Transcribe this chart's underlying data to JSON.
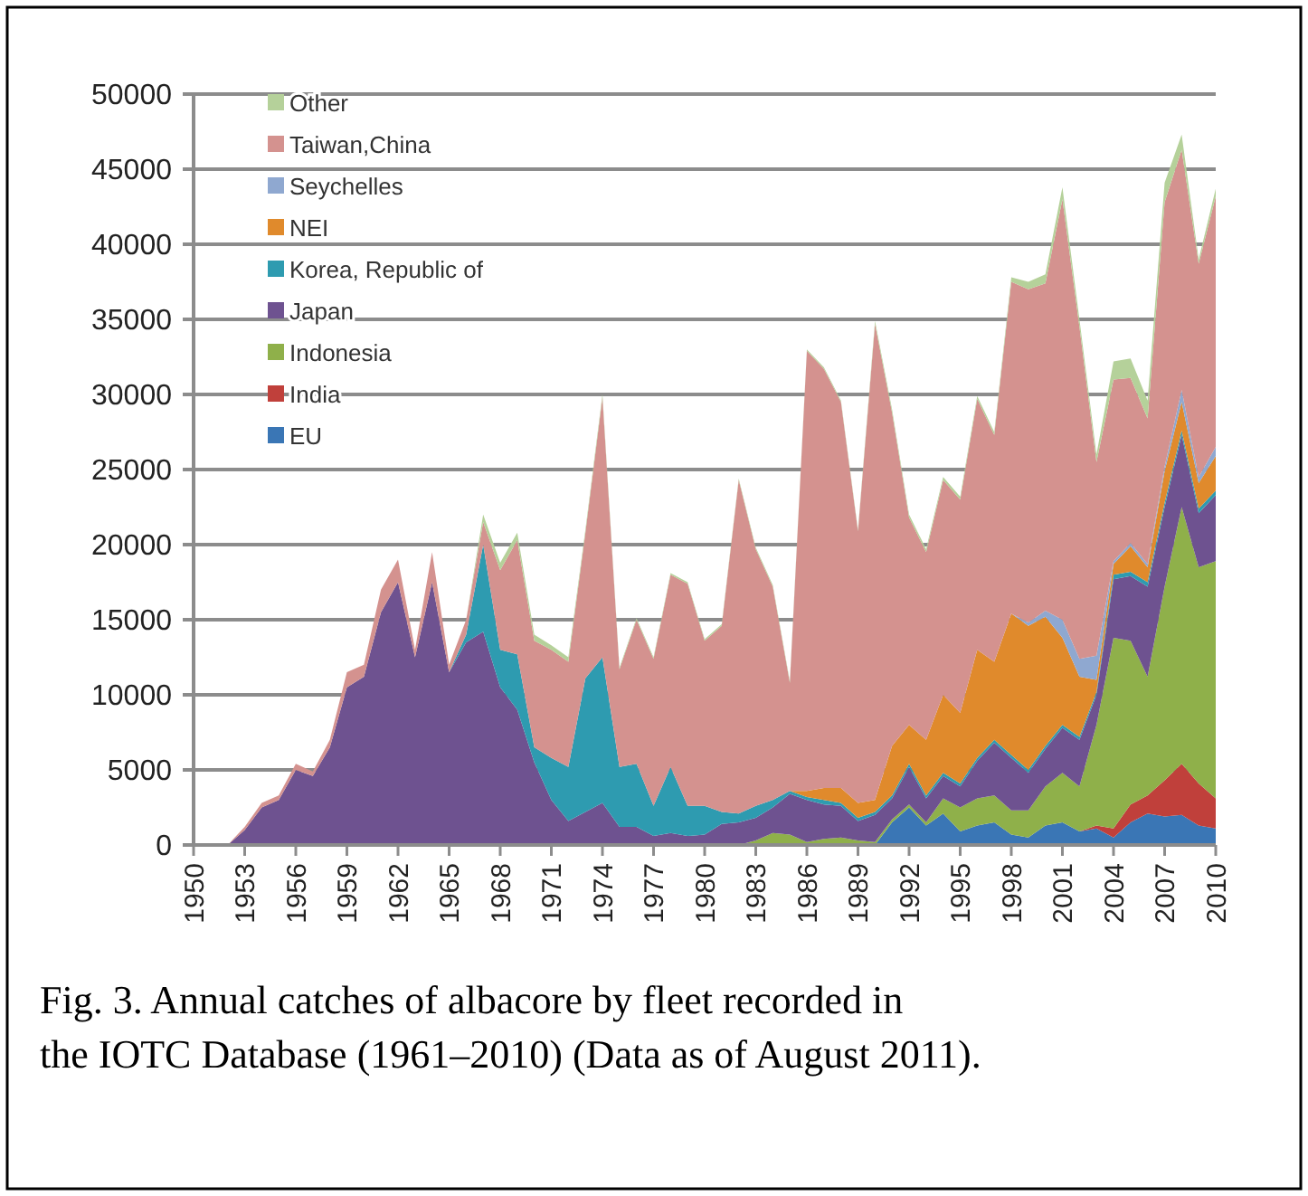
{
  "chart_data": {
    "type": "area",
    "stacked": true,
    "x": [
      1950,
      1951,
      1952,
      1953,
      1954,
      1955,
      1956,
      1957,
      1958,
      1959,
      1960,
      1961,
      1962,
      1963,
      1964,
      1965,
      1966,
      1967,
      1968,
      1969,
      1970,
      1971,
      1972,
      1973,
      1974,
      1975,
      1976,
      1977,
      1978,
      1979,
      1980,
      1981,
      1982,
      1983,
      1984,
      1985,
      1986,
      1987,
      1988,
      1989,
      1990,
      1991,
      1992,
      1993,
      1994,
      1995,
      1996,
      1997,
      1998,
      1999,
      2000,
      2001,
      2002,
      2003,
      2004,
      2005,
      2006,
      2007,
      2008,
      2009,
      2010
    ],
    "xlim": [
      1950,
      2010
    ],
    "xticks": [
      1950,
      1953,
      1956,
      1959,
      1962,
      1965,
      1968,
      1971,
      1974,
      1977,
      1980,
      1983,
      1986,
      1989,
      1992,
      1995,
      1998,
      2001,
      2004,
      2007,
      2010
    ],
    "ylim": [
      0,
      50000
    ],
    "yticks": [
      0,
      5000,
      10000,
      15000,
      20000,
      25000,
      30000,
      35000,
      40000,
      45000,
      50000
    ],
    "grid": "y",
    "legend": "top left",
    "annotations": [
      "Fig. 3. Annual catches of albacore by fleet recorded in the IOTC Database (1961–2010) (Data as of August 2011)."
    ],
    "series": [
      {
        "name": "EU",
        "color": "#3a76b5",
        "values": [
          0,
          0,
          0,
          0,
          0,
          0,
          0,
          0,
          0,
          0,
          0,
          0,
          0,
          0,
          0,
          0,
          0,
          0,
          0,
          0,
          0,
          0,
          0,
          0,
          0,
          0,
          0,
          0,
          0,
          0,
          0,
          0,
          0,
          0,
          0,
          0,
          0,
          0,
          0,
          0,
          0,
          1500,
          2500,
          1300,
          2100,
          900,
          1300,
          1500,
          700,
          500,
          1300,
          1500,
          900,
          1100,
          500,
          1500,
          2100,
          1900,
          2000,
          1300,
          1100
        ]
      },
      {
        "name": "India",
        "color": "#c0403b",
        "values": [
          0,
          0,
          0,
          0,
          0,
          0,
          0,
          0,
          0,
          0,
          0,
          0,
          0,
          0,
          0,
          0,
          0,
          0,
          0,
          0,
          0,
          0,
          0,
          0,
          0,
          0,
          0,
          0,
          0,
          0,
          0,
          0,
          0,
          0,
          0,
          0,
          0,
          0,
          0,
          0,
          0,
          0,
          0,
          0,
          0,
          0,
          0,
          0,
          0,
          0,
          0,
          0,
          0,
          200,
          600,
          1200,
          1200,
          2400,
          3400,
          2800,
          2000
        ]
      },
      {
        "name": "Indonesia",
        "color": "#8fb04a",
        "values": [
          0,
          0,
          0,
          0,
          0,
          0,
          0,
          0,
          0,
          0,
          0,
          0,
          0,
          0,
          0,
          0,
          0,
          0,
          0,
          0,
          0,
          0,
          0,
          0,
          0,
          0,
          0,
          0,
          0,
          0,
          0,
          0,
          0,
          300,
          800,
          700,
          200,
          400,
          500,
          300,
          200,
          200,
          200,
          200,
          1000,
          1600,
          1800,
          1800,
          1600,
          1800,
          2600,
          3300,
          3000,
          6700,
          12700,
          10900,
          7900,
          12900,
          17100,
          14400,
          15800
        ]
      },
      {
        "name": "Japan",
        "color": "#6e5290",
        "values": [
          0,
          0,
          0,
          1000,
          2500,
          3000,
          5000,
          4600,
          6500,
          10500,
          11200,
          15500,
          17500,
          12500,
          17500,
          11500,
          13500,
          14200,
          10500,
          9000,
          5500,
          3000,
          1600,
          2200,
          2800,
          1200,
          1200,
          600,
          800,
          600,
          700,
          1400,
          1500,
          1500,
          1700,
          2700,
          2800,
          2300,
          2100,
          1300,
          1800,
          1400,
          2500,
          1600,
          1500,
          1400,
          2500,
          3500,
          3500,
          2500,
          2500,
          3000,
          3100,
          2000,
          3900,
          4300,
          6000,
          5300,
          4800,
          3600,
          4400
        ]
      },
      {
        "name": "Korea, Republic of",
        "color": "#2e9bb0",
        "values": [
          0,
          0,
          0,
          0,
          0,
          0,
          0,
          0,
          0,
          0,
          0,
          0,
          0,
          0,
          0,
          0,
          500,
          5800,
          2500,
          3700,
          1000,
          2800,
          3600,
          8900,
          9700,
          4000,
          4200,
          2000,
          4400,
          2000,
          1900,
          800,
          600,
          800,
          500,
          200,
          200,
          300,
          200,
          200,
          200,
          200,
          200,
          200,
          200,
          200,
          200,
          200,
          200,
          200,
          200,
          200,
          200,
          200,
          300,
          300,
          300,
          300,
          300,
          300,
          300
        ]
      },
      {
        "name": "NEI",
        "color": "#e08a2c",
        "values": [
          0,
          0,
          0,
          0,
          0,
          0,
          0,
          0,
          0,
          0,
          0,
          0,
          0,
          0,
          0,
          0,
          0,
          0,
          0,
          0,
          0,
          0,
          0,
          0,
          0,
          0,
          0,
          0,
          0,
          0,
          0,
          0,
          0,
          0,
          0,
          0,
          400,
          800,
          1000,
          1000,
          800,
          3300,
          2600,
          3700,
          5200,
          4700,
          7200,
          5200,
          9400,
          9600,
          8600,
          5800,
          4000,
          800,
          700,
          1700,
          1000,
          2100,
          1900,
          1700,
          2300
        ]
      },
      {
        "name": "Seychelles",
        "color": "#8fa8d0",
        "values": [
          0,
          0,
          0,
          0,
          0,
          0,
          0,
          0,
          0,
          0,
          0,
          0,
          0,
          0,
          0,
          0,
          0,
          0,
          0,
          0,
          0,
          0,
          0,
          0,
          0,
          0,
          0,
          0,
          0,
          0,
          0,
          0,
          0,
          0,
          0,
          0,
          0,
          0,
          0,
          0,
          0,
          0,
          0,
          0,
          0,
          0,
          0,
          0,
          0,
          200,
          400,
          1200,
          1200,
          1600,
          200,
          200,
          200,
          300,
          800,
          400,
          600
        ]
      },
      {
        "name": "Taiwan,China",
        "color": "#d4928f",
        "values": [
          0,
          0,
          0,
          200,
          300,
          300,
          400,
          300,
          500,
          1000,
          800,
          1500,
          1500,
          500,
          2000,
          500,
          1000,
          1500,
          5300,
          7600,
          7100,
          7200,
          7000,
          9700,
          17300,
          6500,
          9600,
          9800,
          12800,
          14800,
          11000,
          12400,
          22200,
          17100,
          14200,
          7200,
          29300,
          27900,
          25700,
          18100,
          31700,
          22200,
          13800,
          12500,
          14300,
          14200,
          16700,
          15100,
          22100,
          22200,
          21800,
          28000,
          22100,
          12900,
          12100,
          11000,
          9700,
          17600,
          16000,
          14200,
          16700
        ]
      },
      {
        "name": "Other",
        "color": "#b5d19a",
        "values": [
          0,
          0,
          0,
          0,
          0,
          0,
          0,
          0,
          0,
          0,
          0,
          0,
          0,
          0,
          0,
          0,
          0,
          500,
          500,
          500,
          400,
          300,
          300,
          200,
          200,
          100,
          100,
          100,
          100,
          100,
          100,
          100,
          100,
          100,
          100,
          100,
          100,
          100,
          100,
          100,
          200,
          200,
          200,
          200,
          200,
          200,
          200,
          200,
          300,
          500,
          600,
          800,
          500,
          500,
          1200,
          1300,
          1200,
          1300,
          1000,
          300,
          500
        ]
      }
    ]
  }
}
